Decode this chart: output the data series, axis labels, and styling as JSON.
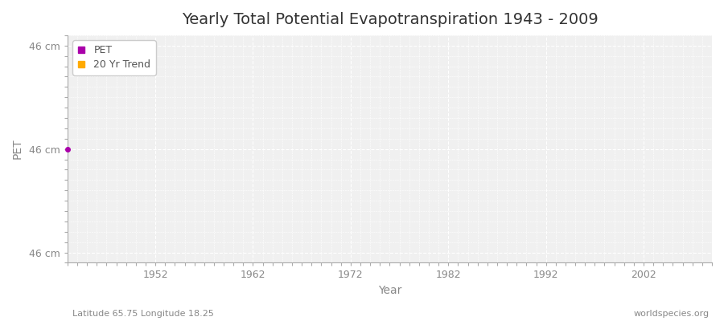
{
  "title": "Yearly Total Potential Evapotranspiration 1943 - 2009",
  "xlabel": "Year",
  "ylabel": "PET",
  "subtitle_left": "Latitude 65.75 Longitude 18.25",
  "subtitle_right": "worldspecies.org",
  "x_ticks": [
    1952,
    1962,
    1972,
    1982,
    1992,
    2002
  ],
  "y_tick_labels": [
    "46 cm",
    "46 cm",
    "46 cm"
  ],
  "y_tick_positions": [
    0.0,
    0.5,
    1.0
  ],
  "ylim": [
    -0.05,
    1.05
  ],
  "xlim": [
    1943,
    2009
  ],
  "pet_color": "#aa00aa",
  "trend_color": "#ffaa00",
  "legend_pet_label": "PET",
  "legend_trend_label": "20 Yr Trend",
  "fig_background_color": "#ffffff",
  "plot_background_color": "#f0f0f0",
  "grid_color": "#ffffff",
  "spine_color": "#aaaaaa",
  "title_fontsize": 14,
  "axis_label_fontsize": 10,
  "tick_fontsize": 9,
  "tick_label_color": "#888888",
  "subtitle_fontsize": 8,
  "subtitle_color": "#888888"
}
